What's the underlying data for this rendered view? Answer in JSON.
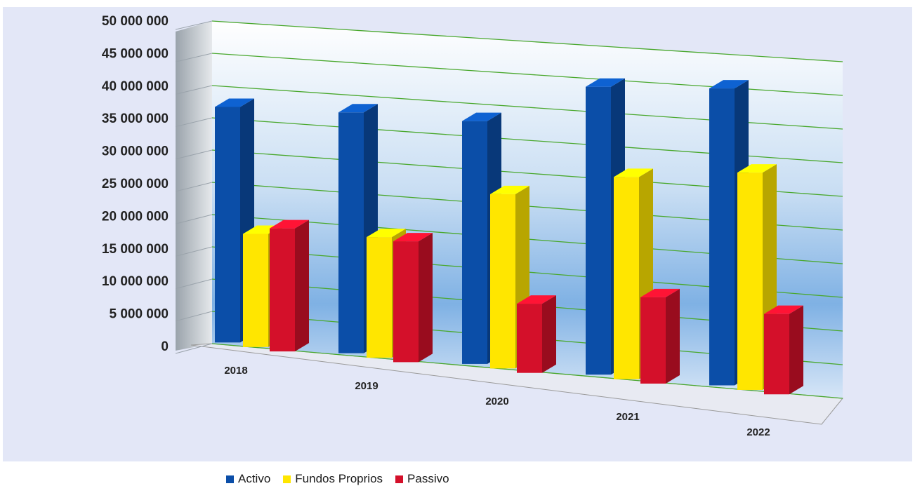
{
  "chart_data": {
    "type": "bar",
    "style": "3d-clustered-column",
    "categories": [
      "2018",
      "2019",
      "2020",
      "2021",
      "2022"
    ],
    "series": [
      {
        "name": "Activo",
        "color": "#0b4ea8",
        "values": [
          36500000,
          37000000,
          37000000,
          43500000,
          44500000
        ]
      },
      {
        "name": "Fundos Proprios",
        "color": "#ffe600",
        "values": [
          17500000,
          18500000,
          26500000,
          30500000,
          32500000
        ]
      },
      {
        "name": "Passivo",
        "color": "#d4102a",
        "values": [
          19000000,
          18500000,
          10500000,
          13000000,
          12000000
        ]
      }
    ],
    "yticks": [
      "0",
      "5 000 000",
      "10 000 000",
      "15 000 000",
      "20 000 000",
      "25 000 000",
      "30 000 000",
      "35 000 000",
      "40 000 000",
      "45 000 000",
      "50 000 000"
    ],
    "ylim": [
      0,
      50000000
    ],
    "grid": true,
    "gridline_color": "#4aa82e",
    "legend_position": "bottom"
  }
}
